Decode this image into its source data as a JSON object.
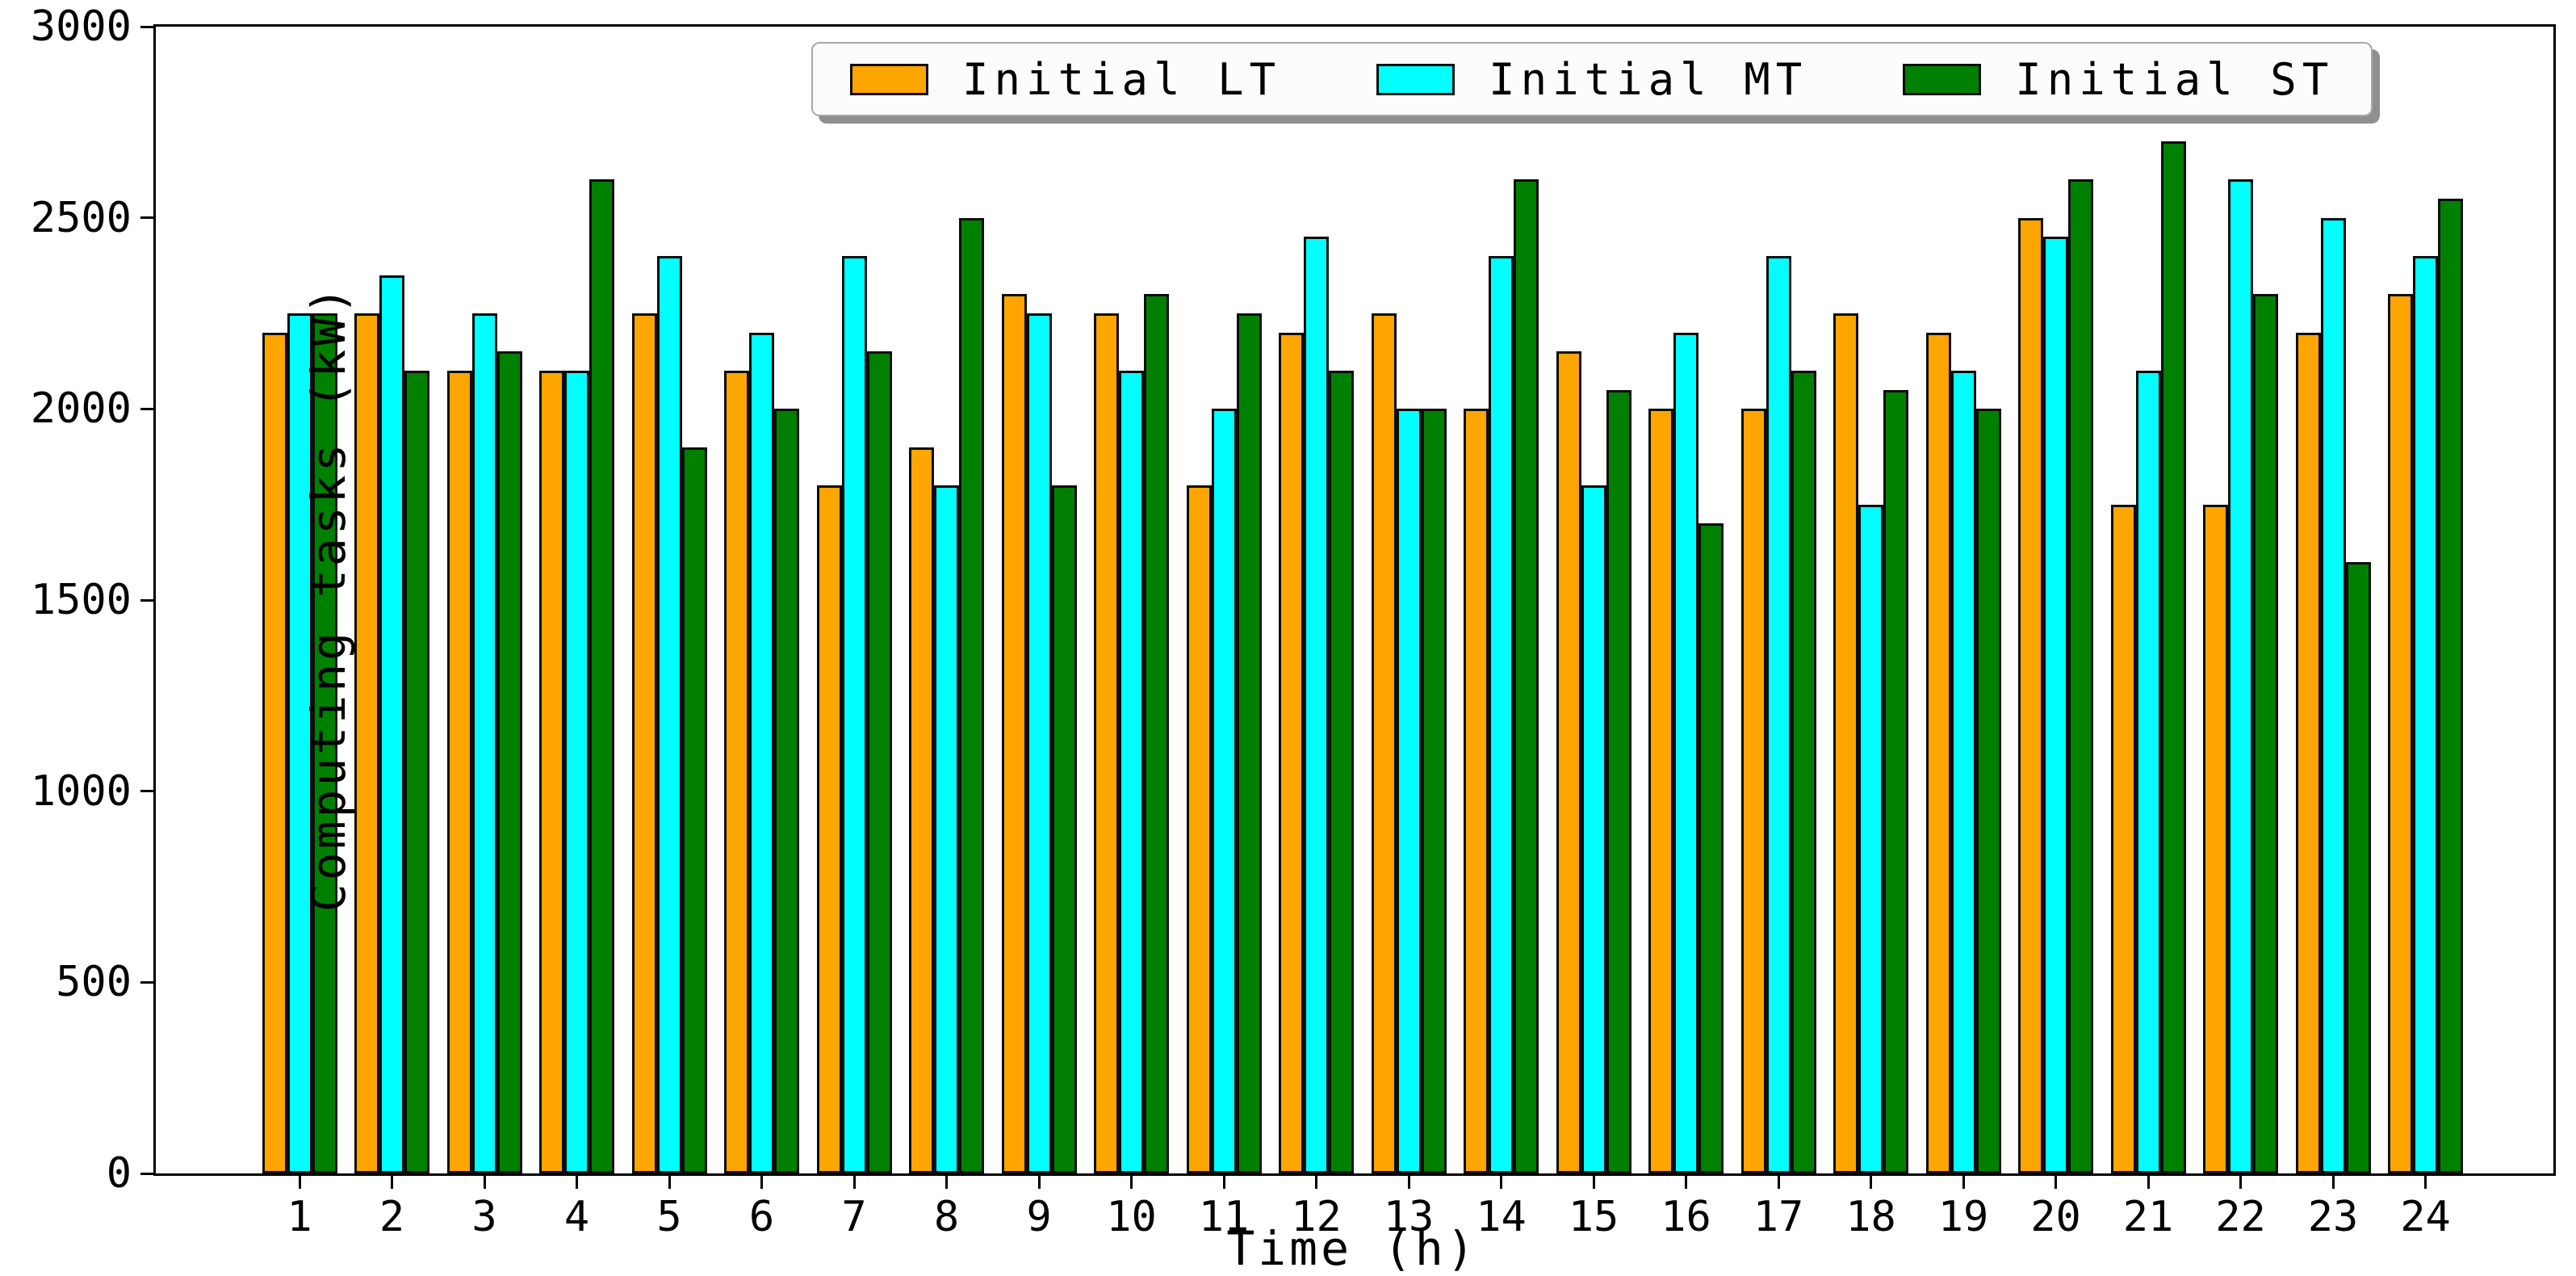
{
  "chart_data": {
    "type": "bar",
    "title": "",
    "xlabel": "Time (h)",
    "ylabel": "Computing tasks (kW)",
    "categories": [
      1,
      2,
      3,
      4,
      5,
      6,
      7,
      8,
      9,
      10,
      11,
      12,
      13,
      14,
      15,
      16,
      17,
      18,
      19,
      20,
      21,
      22,
      23,
      24
    ],
    "series": [
      {
        "name": "Initial LT",
        "color": "#FFA500",
        "values": [
          2200,
          2250,
          2100,
          2100,
          2250,
          2100,
          1800,
          1900,
          2300,
          2250,
          1800,
          2200,
          2250,
          2000,
          2150,
          2000,
          2000,
          2250,
          2200,
          2500,
          1750,
          1750,
          2200,
          2300
        ]
      },
      {
        "name": "Initial MT",
        "color": "#00FFFF",
        "values": [
          2250,
          2350,
          2250,
          2100,
          2400,
          2200,
          2400,
          1800,
          2250,
          2100,
          2000,
          2450,
          2000,
          2400,
          1800,
          2200,
          2400,
          1750,
          2100,
          2450,
          2100,
          2600,
          2500,
          2400
        ]
      },
      {
        "name": "Initial ST",
        "color": "#008000",
        "values": [
          2250,
          2100,
          2150,
          2600,
          1900,
          2000,
          2150,
          2500,
          1800,
          2300,
          2250,
          2100,
          2000,
          2600,
          2050,
          1700,
          2100,
          2050,
          2000,
          2600,
          2700,
          2300,
          1600,
          2550
        ]
      }
    ],
    "ylim": [
      0,
      3000
    ],
    "yticks": [
      0,
      500,
      1000,
      1500,
      2000,
      2500,
      3000
    ],
    "grid": false,
    "legend_position": "top-center",
    "bar_edge_color": "#0d0d0d"
  }
}
